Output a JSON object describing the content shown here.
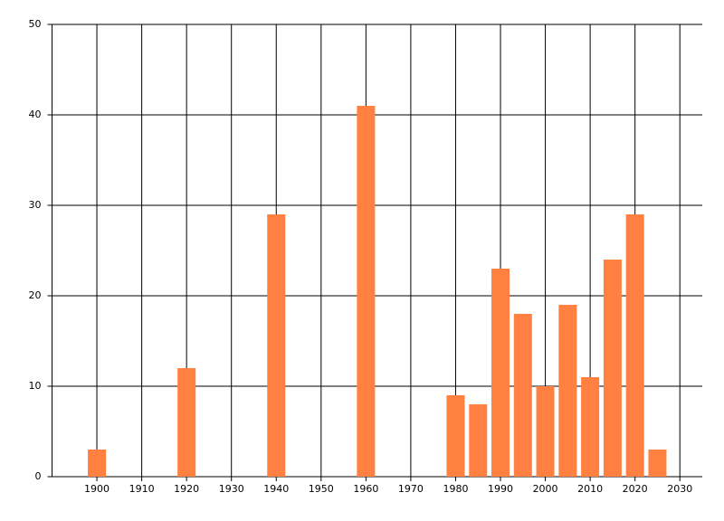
{
  "chart_data": {
    "type": "bar",
    "x": [
      1900,
      1920,
      1940,
      1960,
      1980,
      1985,
      1990,
      1995,
      2000,
      2005,
      2010,
      2015,
      2020,
      2025
    ],
    "values": [
      3,
      12,
      29,
      41,
      9,
      8,
      23,
      18,
      10,
      19,
      11,
      24,
      29,
      3
    ],
    "color": "#ff8040",
    "xlim": [
      1890,
      2035
    ],
    "xticks": [
      1900,
      1910,
      1920,
      1930,
      1940,
      1950,
      1960,
      1970,
      1980,
      1990,
      2000,
      2010,
      2020,
      2030
    ],
    "ylim": [
      0,
      50
    ],
    "yticks": [
      0,
      10,
      20,
      30,
      40,
      50
    ],
    "grid": true
  }
}
